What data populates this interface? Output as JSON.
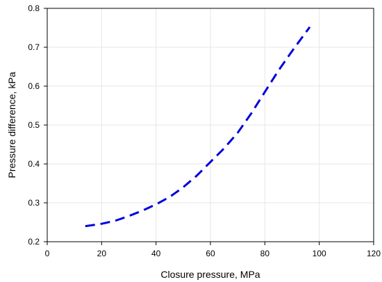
{
  "chart_data": {
    "type": "line",
    "xlabel": "Closure pressure, MPa",
    "ylabel": "Pressure difference, kPa",
    "xlim": [
      0,
      120
    ],
    "ylim": [
      0.2,
      0.8
    ],
    "x_ticks": [
      0,
      20,
      40,
      60,
      80,
      100,
      120
    ],
    "y_ticks": [
      0.2,
      0.3,
      0.4,
      0.5,
      0.6,
      0.7,
      0.8
    ],
    "grid": true,
    "legend": "none",
    "series": [
      {
        "color": "#0000dd",
        "line_style": "dashed",
        "x": [
          14,
          20,
          25,
          30,
          35,
          40,
          45,
          50,
          55,
          60,
          65,
          70,
          75,
          80,
          85,
          90,
          96.5
        ],
        "y": [
          0.24,
          0.246,
          0.254,
          0.266,
          0.28,
          0.296,
          0.315,
          0.34,
          0.37,
          0.405,
          0.44,
          0.48,
          0.53,
          0.585,
          0.64,
          0.69,
          0.752
        ]
      }
    ]
  }
}
